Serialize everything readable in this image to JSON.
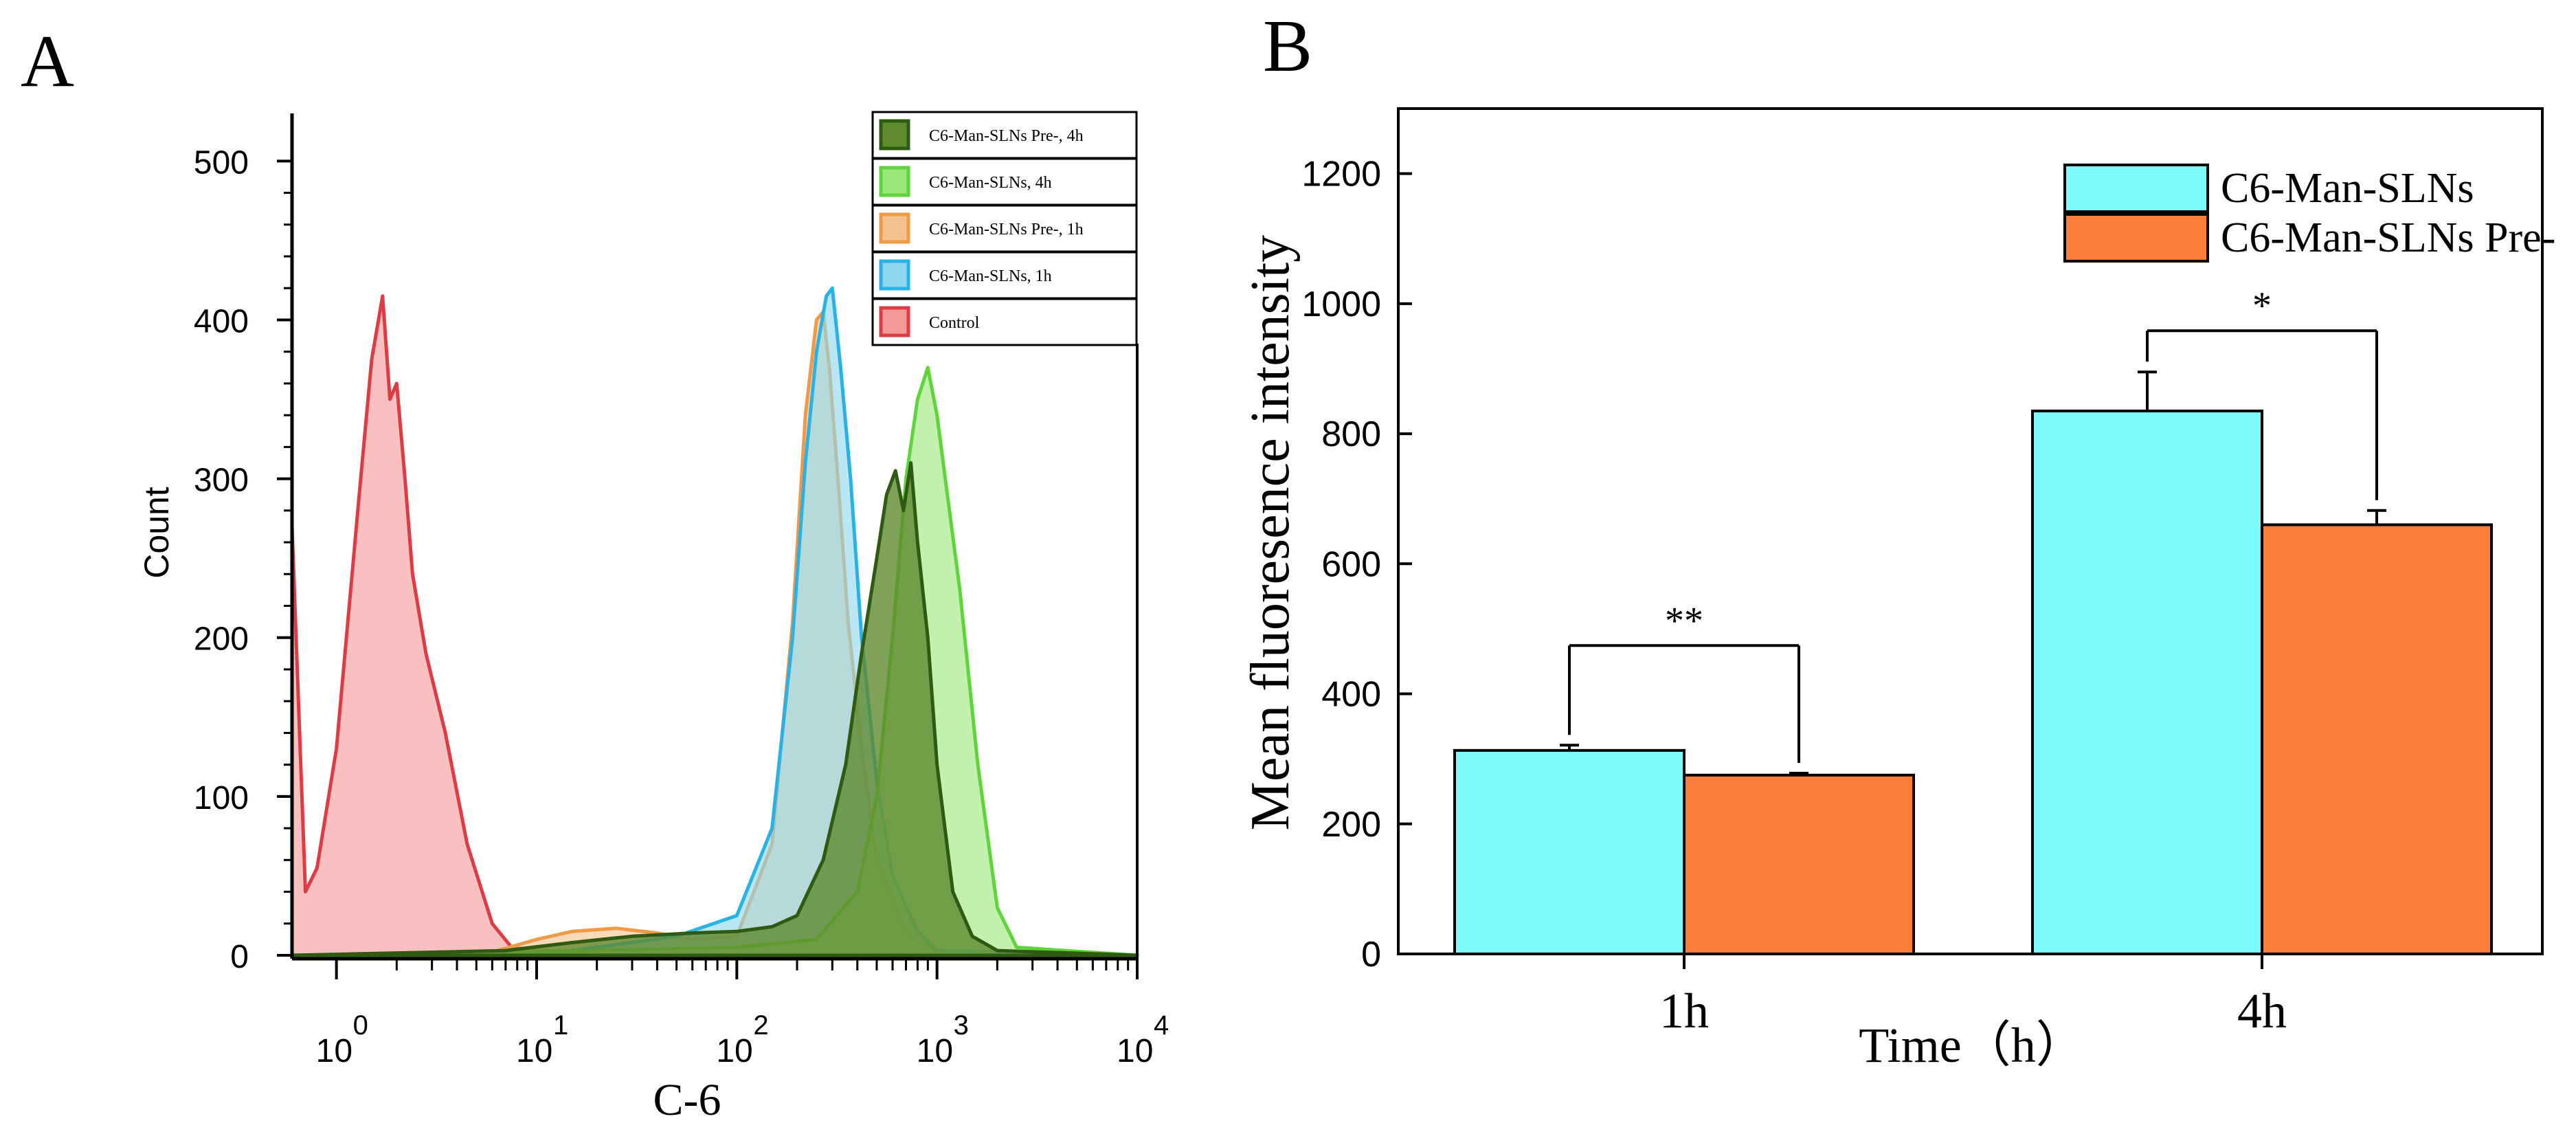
{
  "panels": {
    "a_label": "A",
    "b_label": "B"
  },
  "histogram": {
    "ylabel": "Count",
    "xlabel": "C-6",
    "y_ticks": [
      "0",
      "100",
      "200",
      "300",
      "400",
      "500"
    ],
    "x_tick_base": "10",
    "x_tick_exponents": [
      "0",
      "1",
      "2",
      "3",
      "4"
    ],
    "legend": [
      {
        "label": "C6-Man-SLNs  Pre-, 4h",
        "fill": "#5f8a2e",
        "stroke": "#2f5a12"
      },
      {
        "label": "C6-Man-SLNs,  4h",
        "fill": "#9be87a",
        "stroke": "#5fd43b"
      },
      {
        "label": "C6-Man-SLNs  Pre-, 1h",
        "fill": "#f3c28e",
        "stroke": "#ee9a48"
      },
      {
        "label": "C6-Man-SLNs,  1h",
        "fill": "#8ed8ee",
        "stroke": "#2ab2e4"
      },
      {
        "label": "Control",
        "fill": "#f49a9a",
        "stroke": "#dd3c45"
      }
    ]
  },
  "chart_data": [
    {
      "type": "area",
      "title": "",
      "xlabel": "C-6",
      "ylabel": "Count",
      "x_scale": "log",
      "xlim": [
        0.6,
        10000
      ],
      "ylim": [
        0,
        530
      ],
      "series": [
        {
          "name": "Control",
          "x": [
            0.6,
            0.7,
            0.8,
            1.0,
            1.3,
            1.5,
            1.7,
            1.85,
            2.0,
            2.2,
            2.4,
            2.8,
            3.5,
            4.5,
            6,
            7.5,
            10,
            20,
            50,
            100,
            1000,
            10000
          ],
          "y": [
            270,
            40,
            55,
            130,
            290,
            375,
            415,
            350,
            360,
            300,
            240,
            190,
            140,
            70,
            20,
            5,
            3,
            2,
            1,
            0,
            0,
            0
          ]
        },
        {
          "name": "C6-Man-SLNs,  1h",
          "x": [
            0.6,
            10,
            20,
            50,
            100,
            150,
            190,
            220,
            250,
            280,
            300,
            330,
            370,
            420,
            500,
            600,
            800,
            1000,
            10000
          ],
          "y": [
            0,
            0,
            5,
            12,
            25,
            80,
            200,
            310,
            380,
            415,
            420,
            370,
            300,
            200,
            110,
            50,
            15,
            3,
            0
          ]
        },
        {
          "name": "C6-Man-SLNs  Pre-, 1h",
          "x": [
            0.6,
            6,
            10,
            15,
            25,
            40,
            60,
            100,
            150,
            190,
            220,
            250,
            270,
            290,
            320,
            360,
            420,
            500,
            700,
            1000,
            10000
          ],
          "y": [
            0,
            2,
            10,
            15,
            17,
            14,
            10,
            12,
            70,
            210,
            340,
            400,
            405,
            370,
            300,
            210,
            130,
            60,
            15,
            2,
            0
          ]
        },
        {
          "name": "C6-Man-SLNs,  4h",
          "x": [
            0.6,
            20,
            100,
            250,
            400,
            500,
            600,
            700,
            800,
            900,
            1000,
            1100,
            1300,
            1600,
            2000,
            2500,
            10000
          ],
          "y": [
            0,
            3,
            5,
            10,
            40,
            100,
            200,
            300,
            350,
            370,
            340,
            300,
            230,
            120,
            30,
            5,
            0
          ]
        },
        {
          "name": "C6-Man-SLNs  Pre-, 4h",
          "x": [
            0.6,
            7,
            15,
            30,
            60,
            100,
            150,
            200,
            270,
            350,
            420,
            500,
            560,
            620,
            680,
            740,
            800,
            900,
            1000,
            1200,
            1500,
            2000,
            10000
          ],
          "y": [
            0,
            3,
            8,
            12,
            14,
            15,
            18,
            25,
            60,
            120,
            190,
            250,
            290,
            305,
            280,
            310,
            260,
            200,
            120,
            40,
            12,
            3,
            0
          ]
        }
      ]
    },
    {
      "type": "bar",
      "title": "",
      "xlabel": "Time（h）",
      "ylabel": "Mean fluoresence intensity",
      "categories": [
        "1h",
        "4h"
      ],
      "ylim": [
        0,
        1300
      ],
      "y_ticks": [
        "0",
        "200",
        "400",
        "600",
        "800",
        "1000",
        "1200"
      ],
      "series": [
        {
          "name": "C6-Man-SLNs",
          "values": [
            313,
            835
          ],
          "errors": [
            8,
            60
          ],
          "color": "#7ffafa"
        },
        {
          "name": "C6-Man-SLNs Pre-",
          "values": [
            275,
            660
          ],
          "errors": [
            3,
            22
          ],
          "color": "#fb7f3a"
        }
      ],
      "significance": [
        "**",
        "*"
      ],
      "legend_position": "top-right"
    }
  ]
}
